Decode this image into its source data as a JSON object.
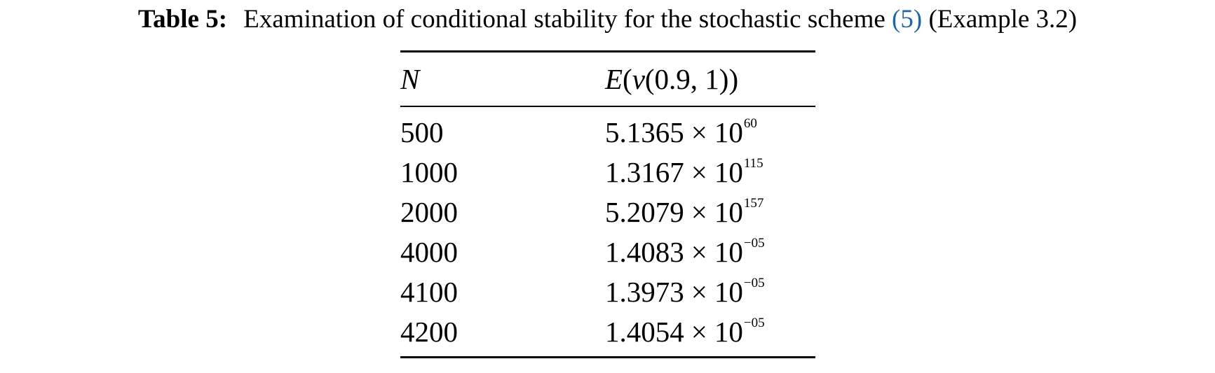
{
  "caption": {
    "label": "Table 5:",
    "text": "Examination of conditional stability for the stochastic scheme",
    "ref": "(5)",
    "suffix": "(Example 3.2)"
  },
  "table": {
    "headers": [
      "N",
      "E(v(0.9, 1))"
    ],
    "rows": [
      {
        "n": "500",
        "mantissa": "5.1365",
        "times": "×",
        "base": "10",
        "exponent": "60"
      },
      {
        "n": "1000",
        "mantissa": "1.3167",
        "times": "×",
        "base": "10",
        "exponent": "115"
      },
      {
        "n": "2000",
        "mantissa": "5.2079",
        "times": "×",
        "base": "10",
        "exponent": "157"
      },
      {
        "n": "4000",
        "mantissa": "1.4083",
        "times": "×",
        "base": "10",
        "exponent": "−05"
      },
      {
        "n": "4100",
        "mantissa": "1.3973",
        "times": "×",
        "base": "10",
        "exponent": "−05"
      },
      {
        "n": "4200",
        "mantissa": "1.4054",
        "times": "×",
        "base": "10",
        "exponent": "−05"
      }
    ]
  }
}
